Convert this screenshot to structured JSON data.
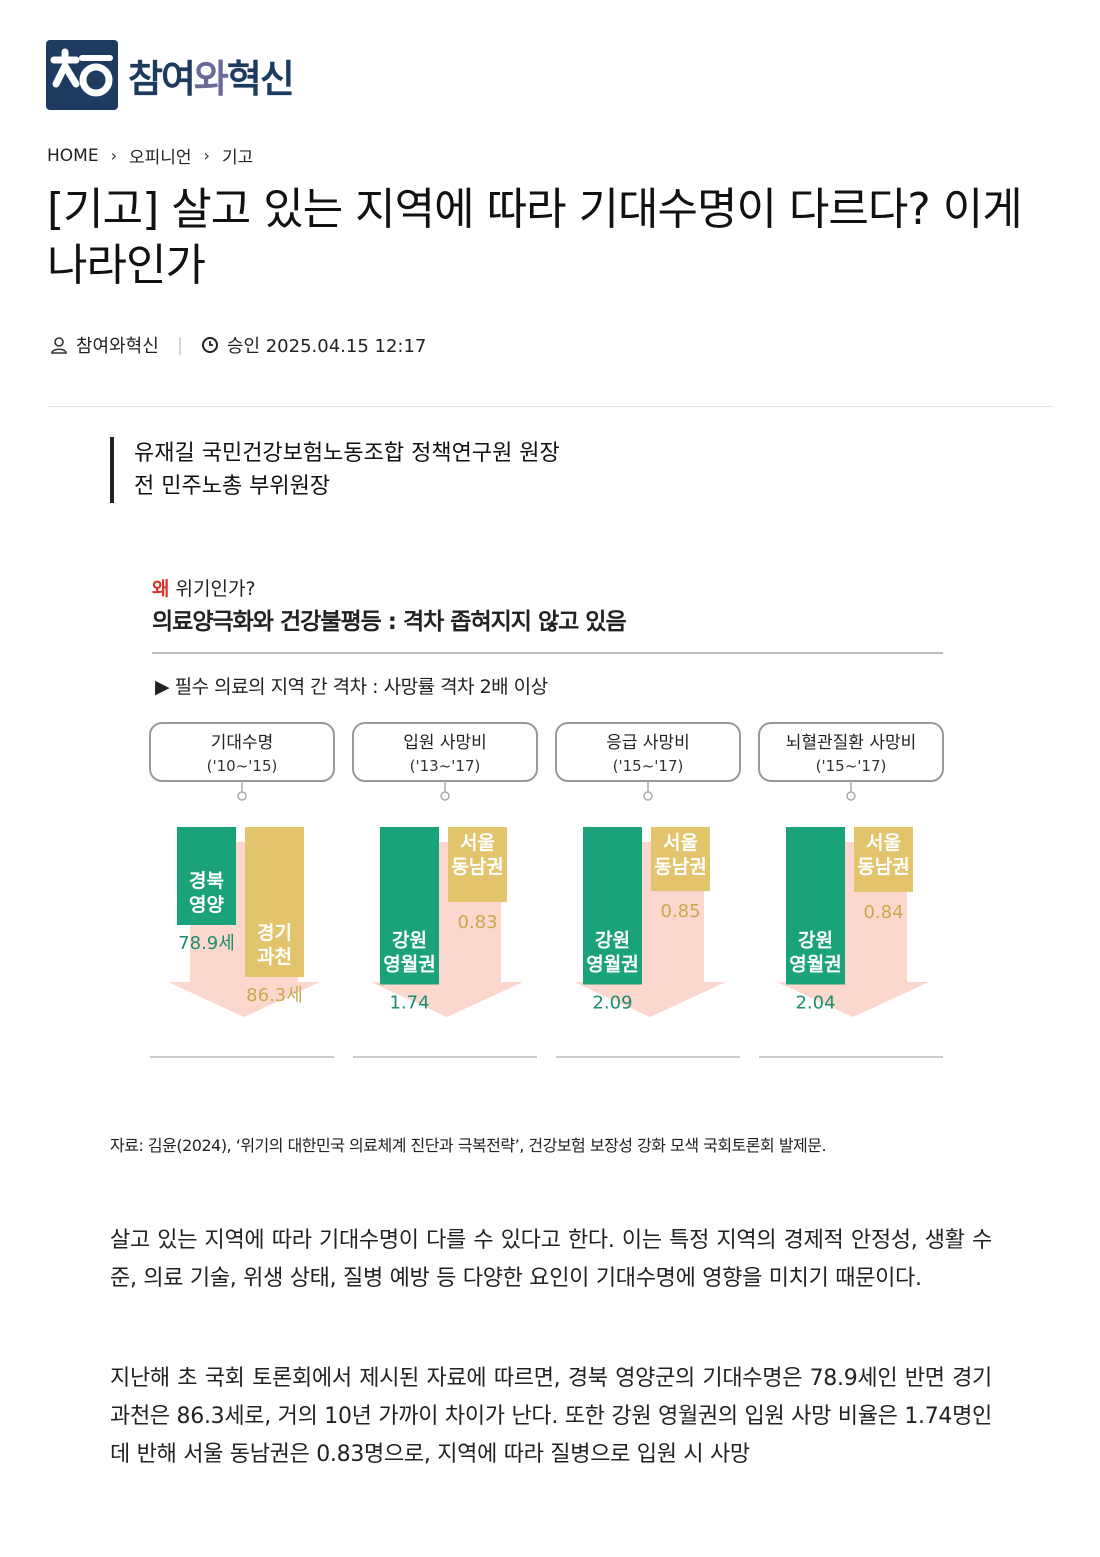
{
  "logo": {
    "text_prefix": "참여",
    "text_o": "와",
    "text_suffix": "혁신",
    "color": "#1d3a5f"
  },
  "breadcrumb": {
    "home": "HOME",
    "section": "오피니언",
    "category": "기고"
  },
  "article": {
    "title": "[기고] 살고 있는 지역에 따라 기대수명이 다르다? 이게 나라인가",
    "author_name": "참여와혁신",
    "published": "승인 2025.04.15 12:17",
    "author_line1": "유재길 국민건강보험노동조합 정책연구원 원장",
    "author_line2": "전 민주노총 부위원장",
    "caption": "자료: 김윤(2024), ‘위기의 대한민국 의료체계 진단과 극복전략’, 건강보험 보장성 강화 모색 국회토론회 발제문.",
    "paragraph1": "살고 있는 지역에 따라 기대수명이 다를 수 있다고 한다. 이는 특정 지역의 경제적 안정성, 생활 수준, 의료 기술, 위생 상태, 질병 예방 등 다양한 요인이 기대수명에 영향을 미치기 때문이다.",
    "paragraph2": "지난해 초 국회 토론회에서 제시된 자료에 따르면, 경북 영양군의 기대수명은 78.9세인 반면 경기 과천은 86.3세로, 거의 10년 가까이 차이가 난다. 또한 강원 영월권의 입원 사망 비율은 1.74명인 데 반해 서울 동남권은 0.83명으로, 지역에 따라 질병으로 입원 시 사망"
  },
  "chart_data": {
    "type": "bar",
    "kicker_red": "왜",
    "kicker": "위기인가?",
    "title": "의료양극화와 건강불평등 : 격차 좁혀지지 않고 있음",
    "subtitle": "▶ 필수 의료의 지역 간 격차 : 사망률 격차 2배 이상",
    "colors": {
      "green": "#1aa37a",
      "gold": "#e2c46c",
      "arrow": "#f8b6a6",
      "kicker": "#d9342b"
    },
    "panels": [
      {
        "label": "기대수명",
        "period": "('10~'15)",
        "bars": [
          {
            "name": "경북\n영양",
            "value": 78.9,
            "value_label": "78.9세",
            "color": "green"
          },
          {
            "name": "경기\n과천",
            "value": 86.3,
            "value_label": "86.3세",
            "color": "gold"
          }
        ]
      },
      {
        "label": "입원 사망비",
        "period": "('13~'17)",
        "bars": [
          {
            "name": "강원\n영월권",
            "value": 1.74,
            "value_label": "1.74",
            "color": "green"
          },
          {
            "name": "서울\n동남권",
            "value": 0.83,
            "value_label": "0.83",
            "color": "gold"
          }
        ]
      },
      {
        "label": "응급 사망비",
        "period": "('15~'17)",
        "bars": [
          {
            "name": "강원\n영월권",
            "value": 2.09,
            "value_label": "2.09",
            "color": "green"
          },
          {
            "name": "서울\n동남권",
            "value": 0.85,
            "value_label": "0.85",
            "color": "gold"
          }
        ]
      },
      {
        "label": "뇌혈관질환 사망비",
        "period": "('15~'17)",
        "bars": [
          {
            "name": "강원\n영월권",
            "value": 2.04,
            "value_label": "2.04",
            "color": "green"
          },
          {
            "name": "서울\n동남권",
            "value": 0.84,
            "value_label": "0.84",
            "color": "gold"
          }
        ]
      }
    ]
  }
}
